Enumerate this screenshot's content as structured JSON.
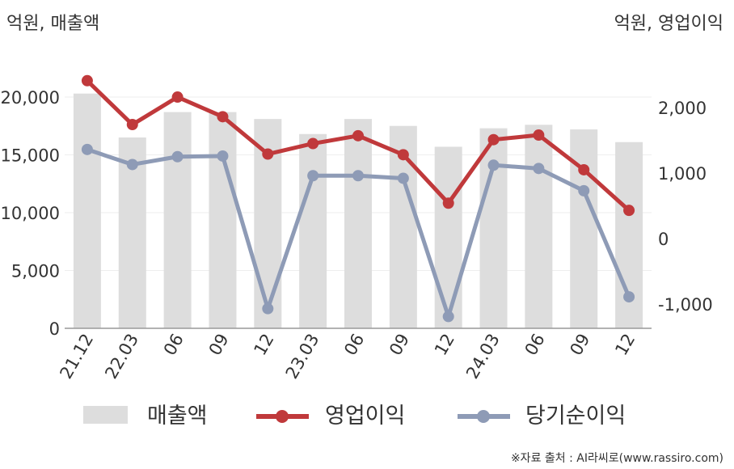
{
  "chart_data": {
    "type": "bar+line",
    "left_unit": "억원, 매출액",
    "right_unit": "억원, 영업이익",
    "categories": [
      "21.12",
      "22.03",
      "06",
      "09",
      "12",
      "23.03",
      "06",
      "09",
      "12",
      "24.03",
      "06",
      "09",
      "12"
    ],
    "left_axis": {
      "min": 0,
      "max": 20000,
      "ticks": [
        "0",
        "5,000",
        "10,000",
        "15,000",
        "20,000"
      ]
    },
    "right_axis": {
      "min": -1000,
      "max": 2000,
      "ticks": [
        "-1,000",
        "0",
        "1,000",
        "2,000"
      ]
    },
    "series": [
      {
        "name": "매출액",
        "type": "bar",
        "axis": "left",
        "color": "#dddddd",
        "values": [
          20300,
          16500,
          18700,
          18700,
          18100,
          16800,
          18100,
          17500,
          15700,
          17300,
          17600,
          17200,
          16100
        ]
      },
      {
        "name": "영업이익",
        "type": "line",
        "axis": "right",
        "color": "#c0393b",
        "values": [
          2410,
          1740,
          2160,
          1860,
          1290,
          1450,
          1570,
          1280,
          540,
          1510,
          1580,
          1050,
          430
        ]
      },
      {
        "name": "당기순이익",
        "type": "line",
        "axis": "right",
        "color": "#8e9bb6",
        "values": [
          1360,
          1130,
          1250,
          1260,
          -1070,
          960,
          960,
          920,
          -1190,
          1120,
          1070,
          730,
          -890
        ]
      }
    ],
    "grid": true,
    "legend": "bottom"
  },
  "source": "※자료 출처 : AI라씨로(www.rassiro.com)"
}
